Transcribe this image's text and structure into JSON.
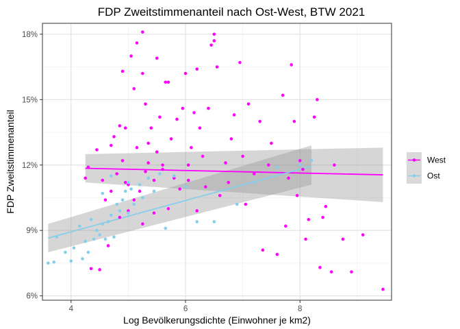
{
  "chart_data": {
    "type": "scatter",
    "title": "FDP Zweitstimmenanteil nach Ost-West, BTW 2021",
    "xlabel": "Log Bevölkerungsdichte (Einwohner je km2)",
    "ylabel": "FDP Zweitstimmenanteil",
    "xlim": [
      3.5,
      9.6
    ],
    "ylim": [
      5.8,
      18.5
    ],
    "x_ticks": [
      4,
      6,
      8
    ],
    "x_tick_labels": [
      "4",
      "6",
      "8"
    ],
    "y_ticks": [
      6,
      9,
      12,
      15,
      18
    ],
    "y_tick_labels": [
      "6%",
      "9%",
      "12%",
      "15%",
      "18%"
    ],
    "grid": true,
    "legend_position": "right",
    "series": [
      {
        "name": "West",
        "color": "#ff00ff",
        "trend": {
          "x": [
            4.25,
            9.45
          ],
          "y": [
            11.85,
            11.55
          ],
          "ci_upper": [
            12.5,
            12.8
          ],
          "ci_lower": [
            11.2,
            10.3
          ]
        },
        "points": [
          [
            4.25,
            11.4
          ],
          [
            4.3,
            11.9
          ],
          [
            4.35,
            7.25
          ],
          [
            4.45,
            12.7
          ],
          [
            4.5,
            7.2
          ],
          [
            4.55,
            11.3
          ],
          [
            4.6,
            10.4
          ],
          [
            4.65,
            8.3
          ],
          [
            4.7,
            12.9
          ],
          [
            4.75,
            13.3
          ],
          [
            4.8,
            11.6
          ],
          [
            4.85,
            9.6
          ],
          [
            4.85,
            13.8
          ],
          [
            4.9,
            16.3
          ],
          [
            4.9,
            12.2
          ],
          [
            4.95,
            13.7
          ],
          [
            5.0,
            9.9
          ],
          [
            5.0,
            11.1
          ],
          [
            5.05,
            17.0
          ],
          [
            5.1,
            15.5
          ],
          [
            5.15,
            17.6
          ],
          [
            5.15,
            12.8
          ],
          [
            5.2,
            10.8
          ],
          [
            5.25,
            16.2
          ],
          [
            5.25,
            18.1
          ],
          [
            5.3,
            11.7
          ],
          [
            5.3,
            14.8
          ],
          [
            5.35,
            12.1
          ],
          [
            5.4,
            13.7
          ],
          [
            5.45,
            9.8
          ],
          [
            5.5,
            16.9
          ],
          [
            5.5,
            12.6
          ],
          [
            5.55,
            14.2
          ],
          [
            5.6,
            12.0
          ],
          [
            5.65,
            15.8
          ],
          [
            5.7,
            15.8
          ],
          [
            5.75,
            13.2
          ],
          [
            5.8,
            11.4
          ],
          [
            5.85,
            14.1
          ],
          [
            5.9,
            10.9
          ],
          [
            5.95,
            14.6
          ],
          [
            6.0,
            16.2
          ],
          [
            6.05,
            11.3
          ],
          [
            6.1,
            12.8
          ],
          [
            6.15,
            14.4
          ],
          [
            6.2,
            16.4
          ],
          [
            6.25,
            13.7
          ],
          [
            6.3,
            12.4
          ],
          [
            6.35,
            11.0
          ],
          [
            6.4,
            14.6
          ],
          [
            6.45,
            17.5
          ],
          [
            6.5,
            18.0
          ],
          [
            6.5,
            17.7
          ],
          [
            6.55,
            16.5
          ],
          [
            6.6,
            10.6
          ],
          [
            6.7,
            12.1
          ],
          [
            6.75,
            11.2
          ],
          [
            6.8,
            13.2
          ],
          [
            6.85,
            14.3
          ],
          [
            6.95,
            16.7
          ],
          [
            7.0,
            12.4
          ],
          [
            7.05,
            10.2
          ],
          [
            7.1,
            14.8
          ],
          [
            7.2,
            11.6
          ],
          [
            7.3,
            14.0
          ],
          [
            7.35,
            8.1
          ],
          [
            7.45,
            12.0
          ],
          [
            7.5,
            13.0
          ],
          [
            7.6,
            7.9
          ],
          [
            7.7,
            15.2
          ],
          [
            7.75,
            9.2
          ],
          [
            7.8,
            11.4
          ],
          [
            7.85,
            16.6
          ],
          [
            7.9,
            14.0
          ],
          [
            7.95,
            10.6
          ],
          [
            8.0,
            12.2
          ],
          [
            8.05,
            11.8
          ],
          [
            8.1,
            8.6
          ],
          [
            8.15,
            9.5
          ],
          [
            8.25,
            14.2
          ],
          [
            8.3,
            15.0
          ],
          [
            8.35,
            7.3
          ],
          [
            8.4,
            9.6
          ],
          [
            8.45,
            10.1
          ],
          [
            8.55,
            7.1
          ],
          [
            8.6,
            12.0
          ],
          [
            8.75,
            8.6
          ],
          [
            8.9,
            7.1
          ],
          [
            9.1,
            8.8
          ],
          [
            9.45,
            6.3
          ],
          [
            4.95,
            11.2
          ],
          [
            5.1,
            10.4
          ],
          [
            5.25,
            9.3
          ],
          [
            5.45,
            11.3
          ],
          [
            5.7,
            10.0
          ],
          [
            6.05,
            12.0
          ],
          [
            6.2,
            9.9
          ],
          [
            5.35,
            13.0
          ],
          [
            5.6,
            11.8
          ],
          [
            4.7,
            10.8
          ]
        ]
      },
      {
        "name": "Ost",
        "color": "#87ceeb",
        "trend": {
          "x": [
            3.6,
            8.2
          ],
          "y": [
            8.65,
            11.95
          ],
          "ci_upper": [
            9.3,
            12.9
          ],
          "ci_lower": [
            8.0,
            11.1
          ]
        },
        "points": [
          [
            3.6,
            7.5
          ],
          [
            3.7,
            7.55
          ],
          [
            3.75,
            8.7
          ],
          [
            3.9,
            8.0
          ],
          [
            4.0,
            7.6
          ],
          [
            4.05,
            8.2
          ],
          [
            4.15,
            9.2
          ],
          [
            4.2,
            7.7
          ],
          [
            4.25,
            8.5
          ],
          [
            4.3,
            8.0
          ],
          [
            4.35,
            9.5
          ],
          [
            4.4,
            8.6
          ],
          [
            4.45,
            9.0
          ],
          [
            4.5,
            8.8
          ],
          [
            4.55,
            9.3
          ],
          [
            4.6,
            8.6
          ],
          [
            4.65,
            9.4
          ],
          [
            4.7,
            9.7
          ],
          [
            4.75,
            8.7
          ],
          [
            4.8,
            10.2
          ],
          [
            4.85,
            9.9
          ],
          [
            4.9,
            10.4
          ],
          [
            4.95,
            10.8
          ],
          [
            5.0,
            9.8
          ],
          [
            5.05,
            10.9
          ],
          [
            5.1,
            10.2
          ],
          [
            5.2,
            11.1
          ],
          [
            5.25,
            10.5
          ],
          [
            5.35,
            11.4
          ],
          [
            5.45,
            10.8
          ],
          [
            5.55,
            11.6
          ],
          [
            5.65,
            9.1
          ],
          [
            5.8,
            11.5
          ],
          [
            6.0,
            11.0
          ],
          [
            6.2,
            9.4
          ],
          [
            6.5,
            9.4
          ],
          [
            6.9,
            10.2
          ],
          [
            7.2,
            11.2
          ],
          [
            7.6,
            11.9
          ],
          [
            8.0,
            12.0
          ],
          [
            8.2,
            12.2
          ],
          [
            4.55,
            10.7
          ],
          [
            4.7,
            11.5
          ],
          [
            5.0,
            11.2
          ]
        ]
      }
    ]
  }
}
